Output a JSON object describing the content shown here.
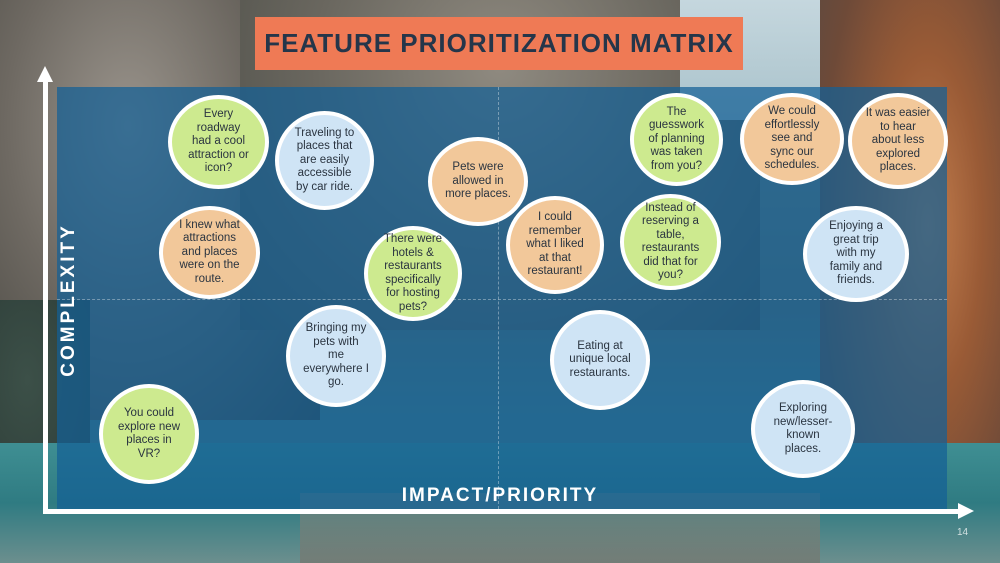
{
  "title": "FEATURE PRIORITIZATION MATRIX",
  "y_axis_label": "COMPLEXITY",
  "x_axis_label": "IMPACT/PRIORITY",
  "page_number": "14",
  "colors": {
    "title_background": "#ef7a55",
    "panel": "#145f96",
    "green_bubble": "#cdea8f",
    "orange_bubble": "#f2c89a",
    "blue_bubble": "#cfe4f5"
  },
  "bubbles": [
    {
      "text": "Every\nroadway\nhad a cool\nattraction or\nicon?",
      "color": "green"
    },
    {
      "text": "Traveling to\nplaces that\nare easily\naccessible\nby car ride.",
      "color": "blue"
    },
    {
      "text": "Pets were\nallowed in\nmore places.",
      "color": "orange"
    },
    {
      "text": "The\nguesswork\nof planning\nwas taken\nfrom you?",
      "color": "green"
    },
    {
      "text": "We could\neffortlessly\nsee and\nsync our\nschedules.",
      "color": "orange"
    },
    {
      "text": "It was easier\nto hear\nabout less\nexplored\nplaces.",
      "color": "orange"
    },
    {
      "text": "I knew what\nattractions\nand places\nwere on the\nroute.",
      "color": "orange"
    },
    {
      "text": "There were\nhotels &\nrestaurants\nspecifically\nfor hosting\npets?",
      "color": "green"
    },
    {
      "text": "I could\nremember\nwhat I liked\nat that\nrestaurant!",
      "color": "orange"
    },
    {
      "text": "Instead of\nreserving a\ntable,\nrestaurants\ndid that for\nyou?",
      "color": "green"
    },
    {
      "text": "Enjoying a\ngreat trip\nwith my\nfamily and\nfriends.",
      "color": "blue"
    },
    {
      "text": "Bringing my\npets with\nme\neverywhere I\ngo.",
      "color": "blue"
    },
    {
      "text": "Eating at\nunique local\nrestaurants.",
      "color": "blue"
    },
    {
      "text": "You could\nexplore new\nplaces in\nVR?",
      "color": "green"
    },
    {
      "text": "Exploring\nnew/lesser-\nknown\nplaces.",
      "color": "blue"
    }
  ]
}
